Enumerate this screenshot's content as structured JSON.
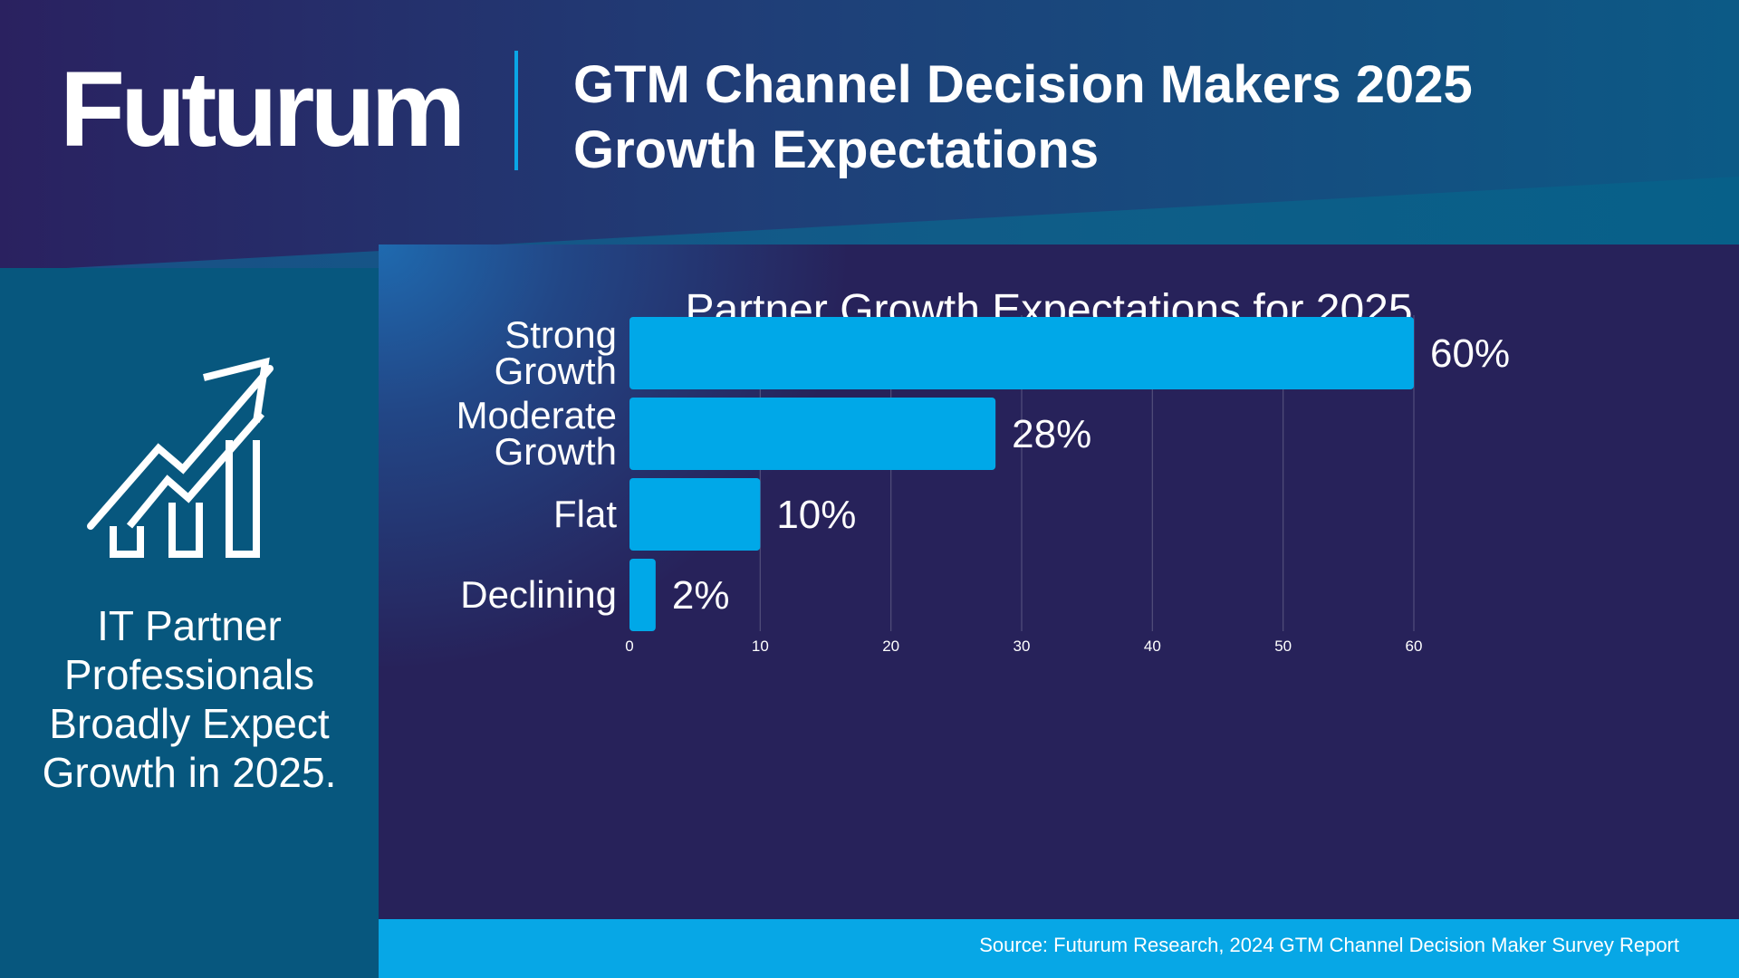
{
  "header": {
    "logo": "Futurum",
    "title_line1": "GTM Channel Decision Makers 2025",
    "title_line2": "Growth Expectations"
  },
  "left_panel": {
    "icon": "growth-chart-arrow-icon",
    "caption_lines": [
      "IT Partner",
      "Professionals",
      "Broadly Expect",
      "Growth in 2025."
    ]
  },
  "footer": {
    "source": "Source: Futurum Research, 2024 GTM Channel Decision Maker Survey Report"
  },
  "colors": {
    "bar": "#00a8e8",
    "accent": "#0aa6e6",
    "background": "#27225a",
    "panel": "#07577e"
  },
  "chart_data": {
    "type": "bar",
    "orientation": "horizontal",
    "title": "Partner Growth Expectations for 2025",
    "categories": [
      [
        "Strong",
        "Growth"
      ],
      [
        "Moderate",
        "Growth"
      ],
      [
        "Flat"
      ],
      [
        "Declining"
      ]
    ],
    "values": [
      60,
      28,
      10,
      2
    ],
    "data_labels": [
      "60%",
      "28%",
      "10%",
      "2%"
    ],
    "xlim": [
      0,
      60
    ],
    "xticks": [
      0,
      10,
      20,
      30,
      40,
      50,
      60
    ],
    "grid": true,
    "xlabel": "",
    "ylabel": ""
  }
}
